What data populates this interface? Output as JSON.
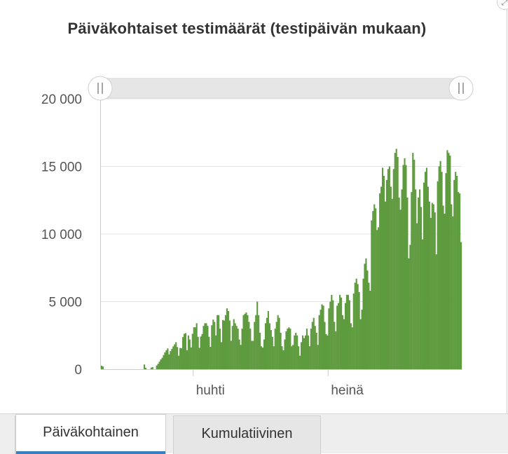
{
  "title": "Päiväkohtaiset testimäärät (testipäivän mukaan)",
  "tabs": [
    {
      "label": "Päiväkohtainen",
      "active": true
    },
    {
      "label": "Kumulatiivinen",
      "active": false
    }
  ],
  "colors": {
    "bar": "#5e9a3e",
    "grid": "#e3e3e3",
    "axis": "#cccccc",
    "tab_active": "#3a7fbf"
  },
  "icons": {
    "expand": "expand-icon"
  },
  "chart_data": {
    "type": "bar",
    "xlabel": "",
    "ylabel": "",
    "ylim": [
      0,
      20000
    ],
    "y_ticks": [
      0,
      5000,
      10000,
      15000,
      20000
    ],
    "y_tick_labels": [
      "0",
      "5 000",
      "10 000",
      "15 000",
      "20 000"
    ],
    "x_tick_labels": [
      {
        "label": "huhti",
        "day_index": 67
      },
      {
        "label": "heinä",
        "day_index": 165
      }
    ],
    "grid": true,
    "legend": "none",
    "range_slider": true,
    "series": [
      {
        "values": [
          260,
          200,
          0,
          0,
          0,
          0,
          0,
          0,
          0,
          0,
          0,
          0,
          0,
          0,
          0,
          0,
          0,
          0,
          0,
          0,
          0,
          0,
          0,
          0,
          0,
          0,
          0,
          0,
          0,
          0,
          0,
          350,
          100,
          0,
          0,
          0,
          120,
          160,
          0,
          0,
          280,
          400,
          560,
          720,
          850,
          1050,
          1250,
          1400,
          1540,
          1100,
          1340,
          1500,
          1690,
          1840,
          2000,
          1640,
          1000,
          1570,
          1550,
          2370,
          2620,
          2670,
          1400,
          2500,
          2200,
          1610,
          2620,
          3100,
          3100,
          3400,
          2400,
          1580,
          2420,
          2600,
          3200,
          3400,
          3400,
          3200,
          2400,
          1660,
          3250,
          3670,
          3500,
          2500,
          4000,
          4000,
          3000,
          2000,
          3640,
          3600,
          4000,
          4500,
          4300,
          3600,
          2100,
          3200,
          3700,
          3400,
          3200,
          3000,
          2200,
          1800,
          3000,
          4000,
          4100,
          4200,
          4000,
          3500,
          3000,
          2100,
          2100,
          3500,
          4000,
          5000,
          4000,
          2700,
          1700,
          1600,
          2200,
          3400,
          3800,
          4300,
          3400,
          2900,
          2400,
          1700,
          3000,
          3500,
          4000,
          3800,
          2700,
          1700,
          1400,
          2200,
          2800,
          3000,
          3100,
          3000,
          1700,
          1800,
          2500,
          2700,
          2500,
          1700,
          1000,
          2000,
          2500,
          2300,
          2500,
          3000,
          2500,
          1700,
          3000,
          3500,
          3800,
          3200,
          2700,
          1800,
          4000,
          4400,
          4800,
          4700,
          3500,
          2600,
          2500,
          4500,
          5000,
          5500,
          5100,
          3500,
          2800,
          4700,
          4900,
          5500,
          5300,
          4000,
          3700,
          4900,
          5500,
          5500,
          5100,
          3400,
          3100,
          5600,
          6400,
          6700,
          6300,
          5700,
          3700,
          4400,
          6700,
          7800,
          8200,
          7300,
          6400,
          5800,
          11000,
          11700,
          12200,
          11900,
          10300,
          10500,
          13000,
          13500,
          14900,
          14300,
          12400,
          14000,
          14800,
          15000,
          13500,
          12600,
          14800,
          16000,
          16300,
          15700,
          12700,
          11800,
          13300,
          15100,
          15600,
          15100,
          12700,
          8200,
          9200,
          13100,
          16000,
          15500,
          13300,
          10800,
          12700,
          13300,
          12000,
          9600,
          13800,
          14600,
          14900,
          13500,
          12400,
          11200,
          12300,
          12200,
          11600,
          8500,
          13900,
          15000,
          15400,
          14600,
          12100,
          11500,
          14500,
          16200,
          16000,
          15800,
          12200,
          11300,
          14000,
          14600,
          14300,
          13100,
          13000,
          9400
        ]
      }
    ]
  }
}
